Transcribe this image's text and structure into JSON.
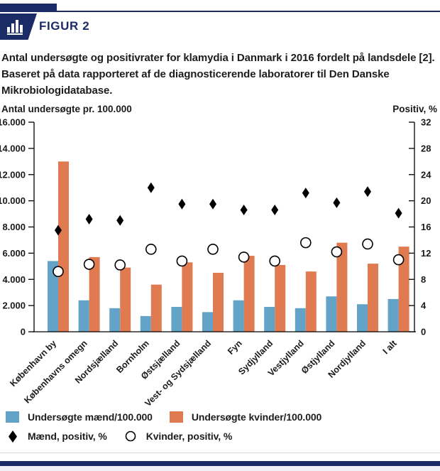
{
  "header": {
    "figure_label": "FIGUR 2",
    "description": "Antal undersøgte og positivrater for klamydia i Danmark i 2016 fordelt på landsdele [2]. Baseret på data rapporteret af de diagnosticerende laboratorer til Den Danske Mikrobiologidatabase."
  },
  "colors": {
    "navy": "#1a2b66",
    "blue_bar": "#62a3c7",
    "orange_bar": "#e07a50",
    "marker_black": "#000000",
    "footer_strip": "#f1f1f4",
    "hairline": "#d8d8d8"
  },
  "chart_data": {
    "type": "bar",
    "subtype": "grouped-bars-with-scatter-markers-dual-axis",
    "categories": [
      "København by",
      "Københavns omegn",
      "Nordsjælland",
      "Bornholm",
      "Østsjælland",
      "Vest- og Sydsjælland",
      "Fyn",
      "Sydjylland",
      "Vestjylland",
      "Østjylland",
      "Nordjylland",
      "I alt"
    ],
    "left_axis": {
      "title": "Antal undersøgte pr. 100.000",
      "range": [
        0,
        16000
      ],
      "tick_labels": [
        "16.000",
        "14.000",
        "12.000",
        "10.000",
        "8.000",
        "6.000",
        "4.000",
        "2.000",
        "0"
      ]
    },
    "right_axis": {
      "title": "Positiv, %",
      "range": [
        0,
        32
      ],
      "tick_labels": [
        "32",
        "28",
        "24",
        "20",
        "16",
        "12",
        "8",
        "4",
        "0"
      ]
    },
    "series": [
      {
        "name": "Undersøgte mænd/100.000",
        "type": "bar",
        "axis": "left",
        "color": "#62a3c7",
        "values": [
          5400,
          2400,
          1800,
          1200,
          1900,
          1500,
          2400,
          1900,
          1800,
          2700,
          2100,
          2500
        ]
      },
      {
        "name": "Undersøgte kvinder/100.000",
        "type": "bar",
        "axis": "left",
        "color": "#e07a50",
        "values": [
          13000,
          5700,
          4900,
          3600,
          5300,
          4500,
          5800,
          5100,
          4600,
          6800,
          5200,
          6500
        ]
      },
      {
        "name": "Mænd, positiv, %",
        "type": "scatter",
        "marker": "diamond-filled",
        "axis": "right",
        "color": "#000000",
        "values": [
          15.5,
          17.2,
          17.0,
          22.0,
          19.5,
          19.5,
          18.6,
          18.6,
          21.2,
          19.7,
          21.4,
          18.1
        ]
      },
      {
        "name": "Kvinder, positiv, %",
        "type": "scatter",
        "marker": "circle-open",
        "axis": "right",
        "color": "#000000",
        "values": [
          9.2,
          10.3,
          10.2,
          12.6,
          10.8,
          12.6,
          11.4,
          10.8,
          13.6,
          12.2,
          13.4,
          11.0
        ]
      }
    ],
    "legend_position": "bottom",
    "grid": false
  }
}
